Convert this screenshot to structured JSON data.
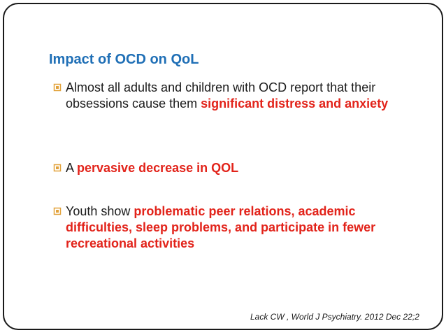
{
  "slide": {
    "title": "Impact of OCD on QoL",
    "bullets": [
      {
        "plain_before": "Almost all adults and children with OCD report that their obsessions cause them ",
        "highlight": "significant distress and anxiety",
        "plain_after": ""
      },
      {
        "plain_before": "A ",
        "highlight": "pervasive decrease in QOL",
        "plain_after": ""
      },
      {
        "plain_before": "Youth show ",
        "highlight": "problematic peer relations, academic difficulties, sleep problems, and participate in fewer recreational activities",
        "plain_after": ""
      }
    ],
    "citation": "Lack CW , World J Psychiatry. 2012 Dec 22;2"
  },
  "colors": {
    "title": "#1F6FB6",
    "highlight": "#E2231A",
    "bullet_icon": "#E2A23B",
    "frame_border": "#1a1a1a"
  },
  "icons": {
    "bullet": "square-bullet-icon"
  }
}
